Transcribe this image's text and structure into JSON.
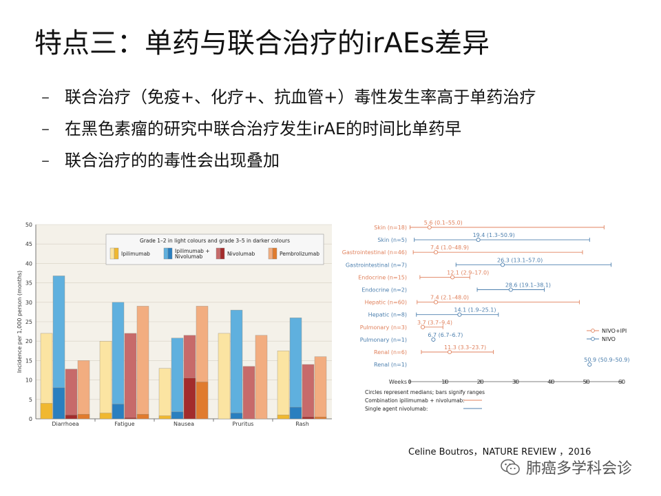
{
  "title": "特点三：单药与联合治疗的irAEs差异",
  "bullets": [
    "联合治疗（免疫+、化疗+、抗血管+）毒性发生率高于单药治疗",
    "在黑色素瘤的研究中联合治疗发生irAE的时间比单药早",
    "联合治疗的的毒性会出现叠加"
  ],
  "bullet_marker": "–",
  "citation": "Celine Boutros，NATURE REVIEW ，2016",
  "watermark": {
    "text": "肺癌多学科会诊",
    "icon": "wechat-icon"
  },
  "chart_data": [
    {
      "type": "bar",
      "ylabel": "Incidence per 1,000 person (months)",
      "ylim": [
        0,
        50
      ],
      "yticks": [
        0,
        5,
        10,
        15,
        20,
        25,
        30,
        35,
        40,
        45,
        50
      ],
      "categories": [
        "Diarrhoea",
        "Fatigue",
        "Nausea",
        "Pruritus",
        "Rash"
      ],
      "legend_title": "Grade 1–2 in light colours and grade 3–5 in darker colours",
      "legend_position": "top-right",
      "series": [
        {
          "name": "Ipilimumab",
          "light": "#fbe4a2",
          "dark": "#f0b830",
          "total": [
            22,
            20,
            13,
            22,
            17.5
          ],
          "grade3_5": [
            4,
            1.5,
            0.8,
            0,
            1
          ]
        },
        {
          "name": "Ipilimumab + Nivolumab",
          "light": "#5fb0de",
          "dark": "#2a7fbf",
          "total": [
            36.8,
            30,
            20.8,
            28,
            26
          ],
          "grade3_5": [
            8,
            3.8,
            1.8,
            1.5,
            3
          ]
        },
        {
          "name": "Nivolumab",
          "light": "#c76a6a",
          "dark": "#a32c2c",
          "total": [
            12.8,
            22,
            21.5,
            13.5,
            14
          ],
          "grade3_5": [
            1,
            0.3,
            10.5,
            0,
            0.5
          ]
        },
        {
          "name": "Pembrolizumab",
          "light": "#f2ad80",
          "dark": "#e07b2e",
          "total": [
            15,
            29,
            29,
            21.5,
            16
          ],
          "grade3_5": [
            1.2,
            1.2,
            9.5,
            0,
            0.5
          ]
        }
      ],
      "colors": {
        "panel_bg": "#f4f1e9",
        "legend_box_bg": "#f7f7f7"
      }
    },
    {
      "type": "range-dot",
      "xlabel": "Weeks",
      "xlim": [
        0,
        60
      ],
      "xticks": [
        0,
        10,
        20,
        30,
        40,
        50,
        60
      ],
      "legend": [
        {
          "name": "NIVO+IPI",
          "color": "#e0815c"
        },
        {
          "name": "NIVO",
          "color": "#4c7fae"
        }
      ],
      "legend_position": "right",
      "rows": [
        {
          "label": "Skin (n=18)",
          "annotation": "5.6 (0.1–55.0)",
          "median": 5.6,
          "low": 0.1,
          "high": 55.0,
          "series": "NIVO+IPI"
        },
        {
          "label": "Skin (n=5)",
          "annotation": "19.4 (1.3–50.9)",
          "median": 19.4,
          "low": 1.3,
          "high": 50.9,
          "series": "NIVO"
        },
        {
          "label": "Gastrointestinal (n=46)",
          "annotation": "7.4 (1.0–48.9)",
          "median": 7.4,
          "low": 1.0,
          "high": 48.9,
          "series": "NIVO+IPI"
        },
        {
          "label": "Gastrointestinal (n=7)",
          "annotation": "26.3 (13.1–57.0)",
          "median": 26.3,
          "low": 13.1,
          "high": 57.0,
          "series": "NIVO"
        },
        {
          "label": "Endocrine (n=15)",
          "annotation": "12.1 (2.9–17.0)",
          "median": 12.1,
          "low": 2.9,
          "high": 17.0,
          "series": "NIVO+IPI"
        },
        {
          "label": "Endocrine (n=2)",
          "annotation": "28.6 (19.1–38.1)",
          "median": 28.6,
          "low": 19.1,
          "high": 38.1,
          "series": "NIVO"
        },
        {
          "label": "Hepatic (n=60)",
          "annotation": "7.4 (2.1–48.0)",
          "median": 7.4,
          "low": 2.1,
          "high": 48.0,
          "series": "NIVO+IPI"
        },
        {
          "label": "Hepatic (n=8)",
          "annotation": "14.1 (1.9–25.1)",
          "median": 14.1,
          "low": 1.9,
          "high": 25.1,
          "series": "NIVO"
        },
        {
          "label": "Pulmonary (n=3)",
          "annotation": "3.7 (3.7–9.4)",
          "median": 3.7,
          "low": 3.7,
          "high": 9.4,
          "series": "NIVO+IPI"
        },
        {
          "label": "Pulmonary (n=1)",
          "annotation": "6.7 (6.7–6.7)",
          "median": 6.7,
          "low": 6.7,
          "high": 6.7,
          "series": "NIVO"
        },
        {
          "label": "Renal (n=6)",
          "annotation": "11.3 (3.3–23.7)",
          "median": 11.3,
          "low": 3.3,
          "high": 23.7,
          "series": "NIVO+IPI"
        },
        {
          "label": "Renal (n=1)",
          "annotation": "50.9 (50.9–50.9)",
          "median": 50.9,
          "low": 50.9,
          "high": 50.9,
          "series": "NIVO"
        }
      ],
      "footnotes": [
        {
          "text": "Circles represent medians; bars signify ranges"
        },
        {
          "text": "Combination ipilimumab + nivolumab:",
          "series": "NIVO+IPI"
        },
        {
          "text": "Single agent nivolumab:",
          "series": "NIVO"
        }
      ]
    }
  ]
}
